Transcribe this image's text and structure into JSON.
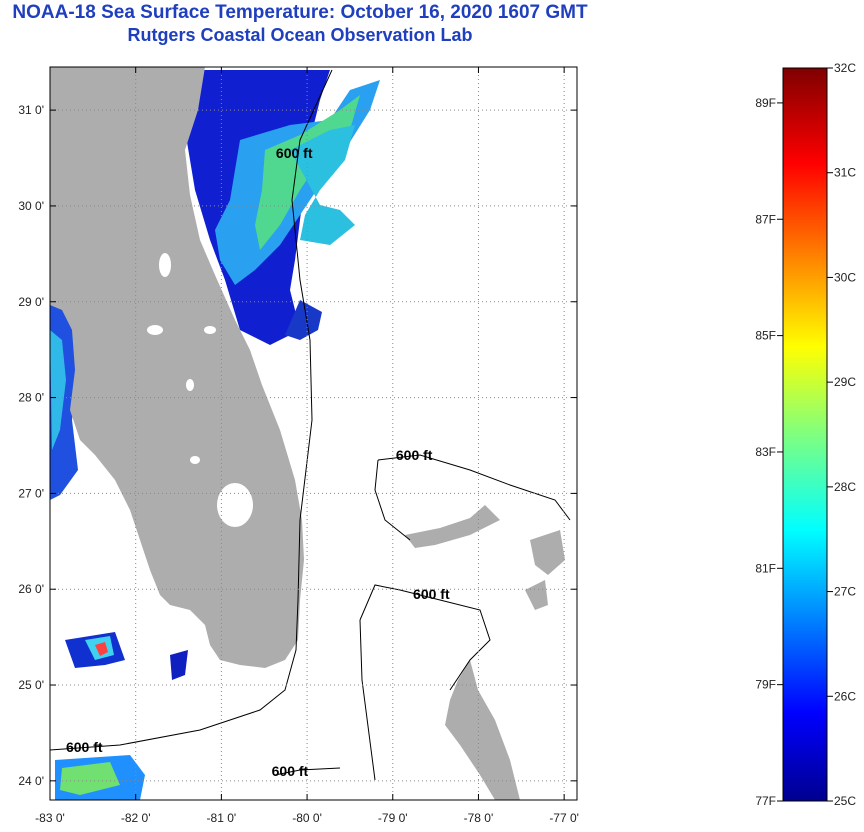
{
  "title_line1": "NOAA-18 Sea Surface Temperature:  October 16, 2020 1607 GMT",
  "title_line2": "Rutgers Coastal Ocean Observation Lab",
  "map": {
    "lon_range": [
      -83,
      -76.85
    ],
    "lat_range": [
      23.8,
      31.45
    ],
    "lon_ticks": [
      {
        "value": -83,
        "label": "-83 0'"
      },
      {
        "value": -82,
        "label": "-82 0'"
      },
      {
        "value": -81,
        "label": "-81 0'"
      },
      {
        "value": -80,
        "label": "-80 0'"
      },
      {
        "value": -79,
        "label": "-79 0'"
      },
      {
        "value": -78,
        "label": "-78 0'"
      },
      {
        "value": -77,
        "label": "-77 0'"
      }
    ],
    "lat_ticks": [
      {
        "value": 24,
        "label": "24 0'"
      },
      {
        "value": 25,
        "label": "25 0'"
      },
      {
        "value": 26,
        "label": "26 0'"
      },
      {
        "value": 27,
        "label": "27 0'"
      },
      {
        "value": 28,
        "label": "28 0'"
      },
      {
        "value": 29,
        "label": "29 0'"
      },
      {
        "value": 30,
        "label": "30 0'"
      },
      {
        "value": 31,
        "label": "31 0'"
      }
    ],
    "contour_labels": [
      {
        "text": "600 ft",
        "lon": -80.15,
        "lat": 30.5
      },
      {
        "text": "600 ft",
        "lon": -78.75,
        "lat": 27.35
      },
      {
        "text": "600 ft",
        "lon": -78.55,
        "lat": 25.9
      },
      {
        "text": "600 ft",
        "lon": -82.6,
        "lat": 24.3
      },
      {
        "text": "600 ft",
        "lon": -80.2,
        "lat": 24.05
      }
    ],
    "colors": {
      "land": "#adadad",
      "grid": "#888888",
      "ocean": "#ffffff"
    }
  },
  "colorbar": {
    "min_c": 25,
    "max_c": 32,
    "c_labels": [
      "32C",
      "31C",
      "30C",
      "29C",
      "28C",
      "27C",
      "26C",
      "25C"
    ],
    "c_values": [
      32,
      31,
      30,
      29,
      28,
      27,
      26,
      25
    ],
    "f_labels": [
      "89F",
      "87F",
      "85F",
      "83F",
      "81F",
      "79F",
      "77F"
    ],
    "f_values": [
      89,
      87,
      85,
      83,
      81,
      79,
      77
    ]
  }
}
